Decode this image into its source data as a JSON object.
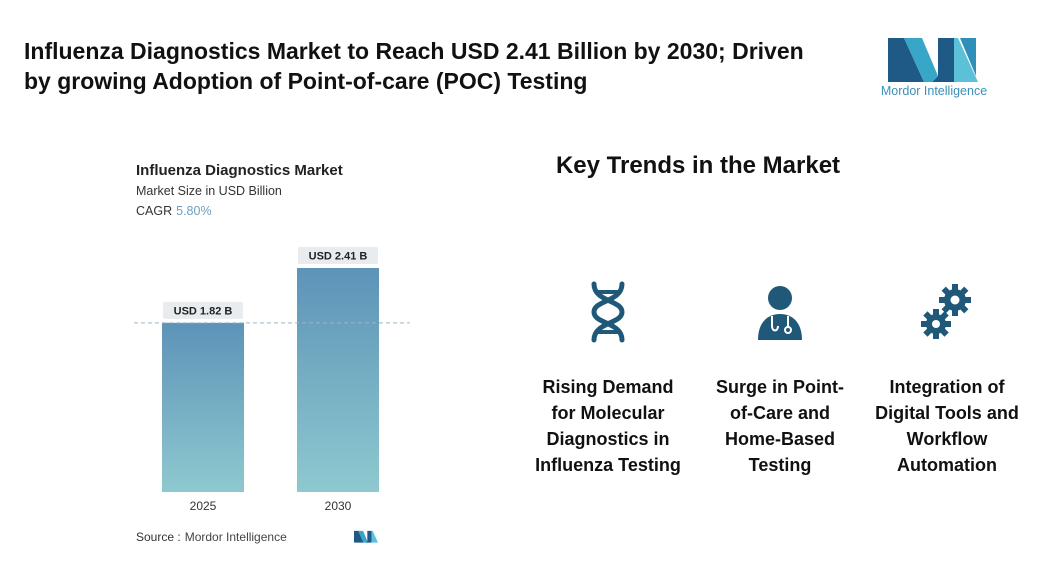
{
  "headline": "Influenza Diagnostics Market to Reach USD 2.41 Billion by 2030; Driven by growing Adoption of Point-of-care (POC) Testing",
  "brand": {
    "name": "Mordor Intelligence",
    "logo_icon": "mordor-logo-icon",
    "color": "#3d8fb8"
  },
  "chart_header": {
    "title": "Influenza Diagnostics Market",
    "subtitle": "Market Size in USD Billion",
    "cagr_label": "CAGR",
    "cagr_value": "5.80%"
  },
  "chart_data": {
    "type": "bar",
    "categories": [
      "2025",
      "2030"
    ],
    "values": [
      1.82,
      2.41
    ],
    "data_labels": [
      "USD 1.82 B",
      "USD 2.41 B"
    ],
    "title": "Influenza Diagnostics Market",
    "xlabel": "",
    "ylabel": "Market Size in USD Billion",
    "ylim": [
      0,
      2.41
    ],
    "grid": false,
    "reference_line": 1.82,
    "colors": {
      "bar_top": "#5d93b8",
      "bar_bottom": "#8ec9cf",
      "label_bg": "#e8ecef",
      "reference_line": "#9fb6c3"
    }
  },
  "source": {
    "label": "Source :",
    "name": "Mordor Intelligence"
  },
  "trends": {
    "title": "Key Trends in the Market",
    "icon_color": "#1f5878",
    "items": [
      {
        "icon": "dna-icon",
        "label": "Rising Demand for Molecular Diagnostics in Influenza Testing"
      },
      {
        "icon": "doctor-icon",
        "label": "Surge in Point-of-Care and Home-Based Testing"
      },
      {
        "icon": "gears-icon",
        "label": "Integration of Digital Tools and Workflow Automation"
      }
    ]
  }
}
